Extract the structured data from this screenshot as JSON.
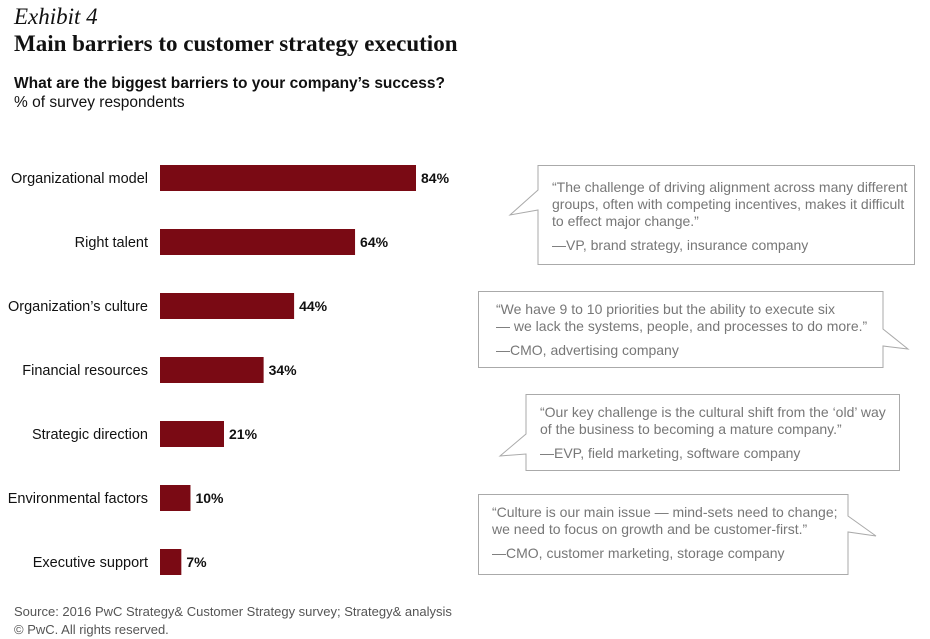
{
  "header": {
    "exhibit": "Exhibit 4",
    "title": "Main barriers to customer strategy execution",
    "question": "What are the biggest barriers to your company’s success?",
    "unit": "% of survey respondents"
  },
  "chart_data": {
    "type": "bar",
    "orientation": "horizontal",
    "categories": [
      "Organizational model",
      "Right talent",
      "Organization’s culture",
      "Financial resources",
      "Strategic direction",
      "Environmental factors",
      "Executive support"
    ],
    "values": [
      84,
      64,
      44,
      34,
      21,
      10,
      7
    ],
    "value_labels": [
      "84%",
      "64%",
      "44%",
      "34%",
      "21%",
      "10%",
      "7%"
    ],
    "bar_color": "#7a0a14",
    "grid": false
  },
  "quotes": [
    {
      "lines": [
        "“The challenge of driving alignment across many different",
        "groups, often with competing incentives, makes it difficult",
        "to effect major change.”"
      ],
      "attribution": "—VP, brand strategy, insurance company"
    },
    {
      "lines": [
        "“We have 9 to 10 priorities but the ability to execute six",
        "— we lack the systems, people, and processes to do more.”"
      ],
      "attribution": "—CMO, advertising company"
    },
    {
      "lines": [
        "“Our key challenge is the cultural shift from the ‘old’ way",
        "of the business to becoming a mature company.”"
      ],
      "attribution": "—EVP, field marketing, software company"
    },
    {
      "lines": [
        "“Culture is our main issue — mind-sets need to change;",
        "we need to focus on growth and be customer-first.”"
      ],
      "attribution": "—CMO, customer marketing, storage company"
    }
  ],
  "footer": {
    "source": "Source: 2016 PwC Strategy& Customer Strategy survey; Strategy& analysis",
    "copyright": "© PwC. All rights reserved."
  },
  "colors": {
    "bar": "#7a0a14",
    "quote_border": "#aaaaaa",
    "quote_text": "#777777"
  }
}
